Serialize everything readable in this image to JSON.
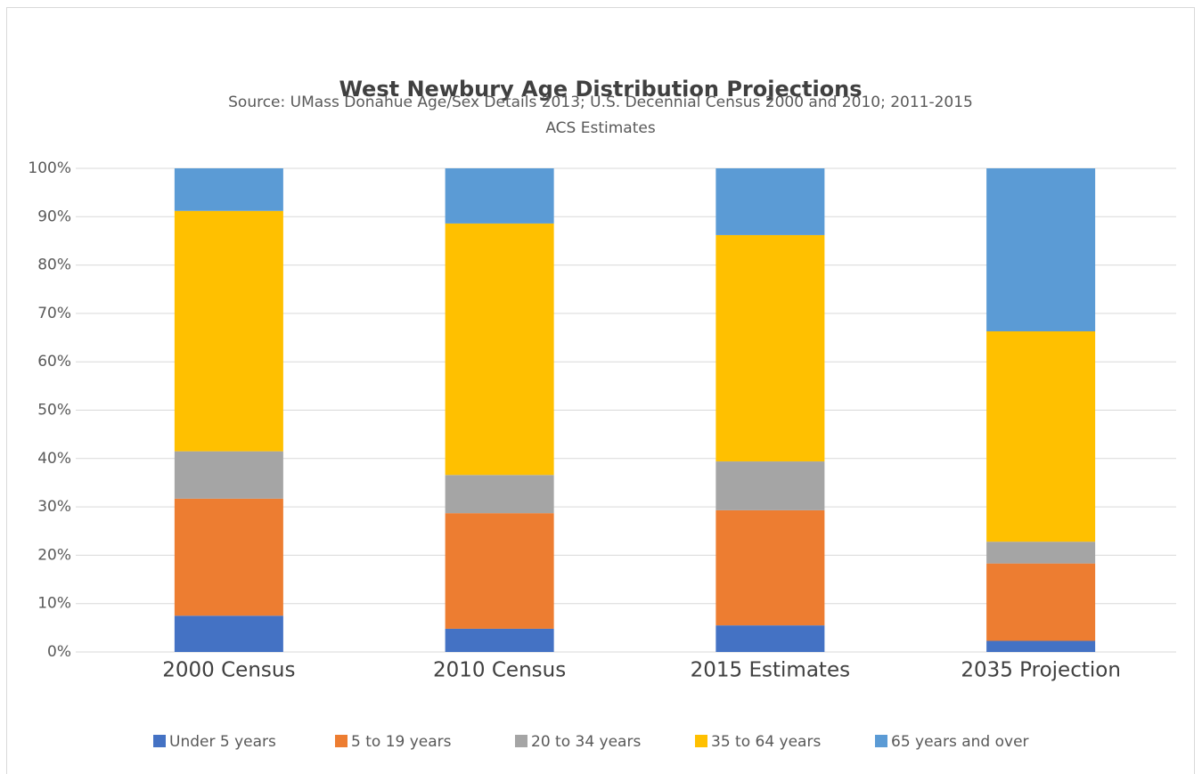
{
  "chart_data": {
    "type": "stacked_bar",
    "title": "West Newbury Age Distribution Projections",
    "subtitle": [
      "Source: UMass Donahue Age/Sex Details 2013; U.S. Decennial Census 2000 and 2010; 2011-2015",
      "ACS Estimates"
    ],
    "categories": [
      "2000 Census",
      "2010 Census",
      "2015 Estimates",
      "2035 Projection"
    ],
    "series": [
      {
        "name": "Under 5 years",
        "color": "#4472c4",
        "values": [
          7.5,
          4.8,
          5.5,
          2.3
        ]
      },
      {
        "name": "5 to 19 years",
        "color": "#ed7d31",
        "values": [
          24.2,
          23.9,
          23.8,
          16
        ]
      },
      {
        "name": "20 to 34 years",
        "color": "#a5a5a5",
        "values": [
          9.8,
          7.9,
          10.1,
          4.5
        ]
      },
      {
        "name": "35 to 64 years",
        "color": "#ffc000",
        "values": [
          49.7,
          52,
          46.8,
          43.5
        ]
      },
      {
        "name": "65 years and over",
        "color": "#5b9bd5",
        "values": [
          8.8,
          11.4,
          13.8,
          33.7
        ]
      }
    ],
    "ylim": [
      0,
      100
    ],
    "yticks": [
      {
        "value": 0,
        "label": "0%"
      },
      {
        "value": 10,
        "label": "10%"
      },
      {
        "value": 20,
        "label": "20%"
      },
      {
        "value": 30,
        "label": "30%"
      },
      {
        "value": 40,
        "label": "40%"
      },
      {
        "value": 50,
        "label": "50%"
      },
      {
        "value": 60,
        "label": "60%"
      },
      {
        "value": 70,
        "label": "70%"
      },
      {
        "value": 80,
        "label": "80%"
      },
      {
        "value": 90,
        "label": "90%"
      },
      {
        "value": 100,
        "label": "100%"
      }
    ],
    "grid": true,
    "legend": "bottom"
  }
}
